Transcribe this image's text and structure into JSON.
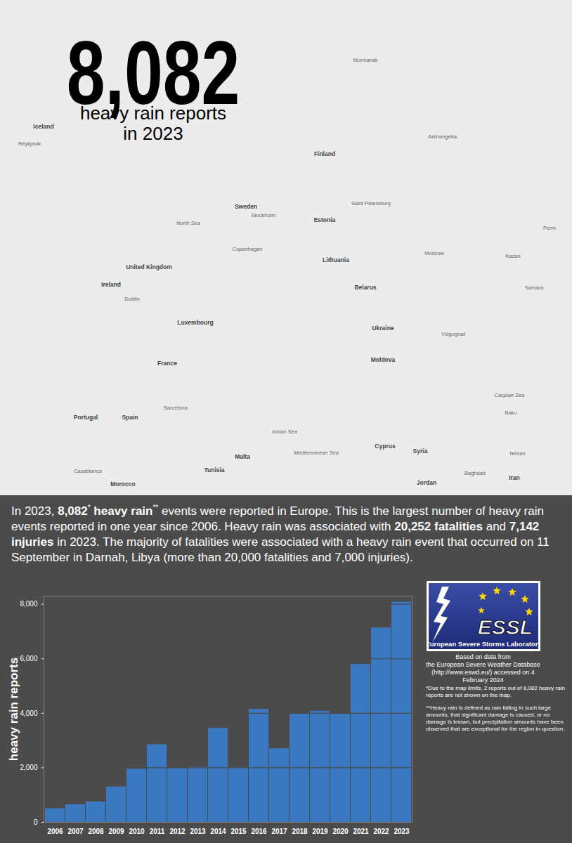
{
  "header": {
    "number": "8,082",
    "subtitle": [
      "heavy rain reports",
      "in 2023"
    ]
  },
  "map": {
    "labels": [
      "Iceland",
      "Reykjavik",
      "Murmansk",
      "Arkhangelsk",
      "Finland",
      "Sweden",
      "Stockholm",
      "Saint Petersburg",
      "Estonia",
      "North Sea",
      "Copenhagen",
      "Lithuania",
      "Moscow",
      "Kazan",
      "Perm",
      "Samara",
      "Belarus",
      "Ireland",
      "United Kingdom",
      "Dublin",
      "Luxembourg",
      "France",
      "Ukraine",
      "Volgograd",
      "Moldova",
      "Portugal",
      "Spain",
      "Barcelona",
      "Ionian Sea",
      "Malta",
      "Mediterranean Sea",
      "Tunisia",
      "Morocco",
      "Casablanca",
      "Cyprus",
      "Syria",
      "Jordan",
      "Baghdad",
      "Tehran",
      "Iran",
      "Caspian Sea",
      "Baku"
    ]
  },
  "text_panel": {
    "runs": [
      {
        "text": "In 2023, "
      },
      {
        "text": "8,082",
        "bold": true
      },
      {
        "text": "*",
        "sup": true
      },
      {
        "text": " "
      },
      {
        "text": "heavy rain",
        "bold": true
      },
      {
        "text": "**",
        "sup": true
      },
      {
        "text": " events were reported in Europe. This is the largest number of heavy rain events reported in one year since 2006. Heavy rain was associated with "
      },
      {
        "text": "20,252 fatalities",
        "bold": true
      },
      {
        "text": " and "
      },
      {
        "text": "7,142 injuries",
        "bold": true
      },
      {
        "text": " in 2023. The majority of fatalities were associated with a heavy rain event that occurred on 11 September in Darnah, Libya (more than 20,000 fatalities and 7,000 injuries)."
      }
    ]
  },
  "chart_data": {
    "type": "bar",
    "categories": [
      "2006",
      "2007",
      "2008",
      "2009",
      "2010",
      "2011",
      "2012",
      "2013",
      "2014",
      "2015",
      "2016",
      "2017",
      "2018",
      "2019",
      "2020",
      "2021",
      "2022",
      "2023"
    ],
    "values": [
      500,
      650,
      750,
      1300,
      1950,
      2850,
      1980,
      2020,
      3450,
      2000,
      4150,
      2700,
      3980,
      4080,
      3980,
      5800,
      7130,
      8082
    ],
    "color": "#3a78c2",
    "ylim": [
      0,
      8300
    ],
    "yticks": [
      0,
      2000,
      4000,
      6000,
      8000
    ],
    "ylabel": "heavy rain reports",
    "grid": true
  },
  "logo": {
    "name": "ESSL",
    "full_name": "European Severe Storms Laboratory"
  },
  "source": [
    "Based on data from",
    "the European Severe Weather Database",
    "(http://www.eswd.eu/) accessed on 4 February 2024"
  ],
  "notes": [
    "*Due to the map limits, 2 reports out of 8,082 heavy rain reports are not shown on the map.",
    "**Heavy rain is defined as rain falling in such large amounts, that significant damage is caused, or no damage is known, but precipitation amounts have been observed that are exceptional for the region in question."
  ]
}
